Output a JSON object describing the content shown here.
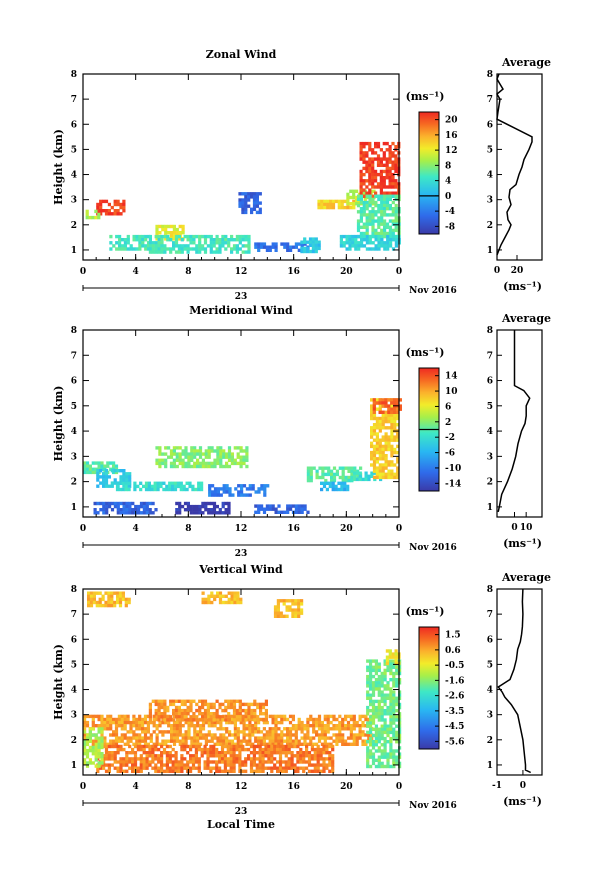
{
  "chart_data": [
    {
      "type": "heatmap",
      "title": "Zonal Wind",
      "ylabel": "Height (km)",
      "ylim": [
        0.6,
        8
      ],
      "yticks": [
        "1",
        "2",
        "3",
        "4",
        "5",
        "6",
        "7",
        "8"
      ],
      "xlim": [
        0,
        24
      ],
      "xticks": [
        "0",
        "4",
        "8",
        "12",
        "16",
        "20",
        "0"
      ],
      "date_label": "23",
      "month_label": "Nov 2016",
      "colorbar": {
        "unit": "(ms⁻¹)",
        "ticks": [
          "20",
          "16",
          "12",
          "8",
          "4",
          "0",
          "-4",
          "-8"
        ],
        "range": [
          -10,
          22
        ],
        "zero_line": 0
      },
      "blocks": [
        {
          "x": [
            1.0,
            3.0
          ],
          "y": [
            2.4,
            3.0
          ],
          "v": 21
        },
        {
          "x": [
            0.2,
            1.2
          ],
          "y": [
            2.3,
            2.6
          ],
          "v": 10
        },
        {
          "x": [
            2.0,
            5.0
          ],
          "y": [
            1.0,
            1.6
          ],
          "v": 5
        },
        {
          "x": [
            5.5,
            7.5
          ],
          "y": [
            1.5,
            2.0
          ],
          "v": 12
        },
        {
          "x": [
            5.0,
            12.5
          ],
          "y": [
            0.9,
            1.6
          ],
          "v": 5
        },
        {
          "x": [
            11.8,
            13.5
          ],
          "y": [
            2.5,
            3.3
          ],
          "v": -6
        },
        {
          "x": [
            13.0,
            17.0
          ],
          "y": [
            1.0,
            1.3
          ],
          "v": -5
        },
        {
          "x": [
            16.5,
            18.0
          ],
          "y": [
            1.0,
            1.5
          ],
          "v": 2
        },
        {
          "x": [
            17.8,
            20.5
          ],
          "y": [
            2.7,
            3.0
          ],
          "v": 14
        },
        {
          "x": [
            20.0,
            22.0
          ],
          "y": [
            2.8,
            3.4
          ],
          "v": 10
        },
        {
          "x": [
            21.0,
            24.0
          ],
          "y": [
            3.2,
            5.3
          ],
          "v": 21
        },
        {
          "x": [
            20.8,
            24.0
          ],
          "y": [
            1.5,
            3.2
          ],
          "v": 6
        },
        {
          "x": [
            19.5,
            24.0
          ],
          "y": [
            1.1,
            1.6
          ],
          "v": 3
        }
      ],
      "average_profile": {
        "title": "Average",
        "xlabel": "(ms⁻¹)",
        "xlim": [
          0,
          35
        ],
        "xticks": [
          "0",
          "20"
        ],
        "height": [
          0.8,
          1.0,
          1.2,
          1.5,
          1.8,
          2.0,
          2.2,
          2.5,
          2.8,
          3.1,
          3.4,
          3.6,
          4.0,
          4.3,
          4.6,
          5.0,
          5.3,
          5.5,
          6.2,
          6.5,
          7.0,
          7.2,
          7.4,
          7.6,
          7.8,
          8.0
        ],
        "value": [
          0,
          2,
          4,
          8,
          12,
          14,
          11,
          10,
          14,
          12,
          13,
          19,
          22,
          25,
          27,
          32,
          35,
          35,
          0,
          1,
          3,
          0,
          6,
          3,
          0,
          2
        ]
      }
    },
    {
      "type": "heatmap",
      "title": "Meridional Wind",
      "ylabel": "Height (km)",
      "ylim": [
        0.6,
        8
      ],
      "yticks": [
        "1",
        "2",
        "3",
        "4",
        "5",
        "6",
        "7",
        "8"
      ],
      "xlim": [
        0,
        24
      ],
      "xticks": [
        "0",
        "4",
        "8",
        "12",
        "16",
        "20",
        "0"
      ],
      "date_label": "23",
      "month_label": "Nov 2016",
      "colorbar": {
        "unit": "(ms⁻¹)",
        "ticks": [
          "14",
          "10",
          "6",
          "2",
          "-2",
          "-6",
          "-10",
          "-14"
        ],
        "range": [
          -16,
          16
        ],
        "zero_line": 0
      },
      "blocks": [
        {
          "x": [
            0.0,
            2.5
          ],
          "y": [
            2.4,
            2.8
          ],
          "v": 0
        },
        {
          "x": [
            1.0,
            3.5
          ],
          "y": [
            1.8,
            2.5
          ],
          "v": -4
        },
        {
          "x": [
            0.8,
            5.5
          ],
          "y": [
            0.8,
            1.2
          ],
          "v": -12
        },
        {
          "x": [
            5.5,
            12.5
          ],
          "y": [
            2.6,
            3.4
          ],
          "v": 2
        },
        {
          "x": [
            7.0,
            11.0
          ],
          "y": [
            0.8,
            1.2
          ],
          "v": -16
        },
        {
          "x": [
            9.5,
            14.0
          ],
          "y": [
            1.5,
            1.9
          ],
          "v": -10
        },
        {
          "x": [
            13.0,
            17.0
          ],
          "y": [
            0.8,
            1.1
          ],
          "v": -12
        },
        {
          "x": [
            17.0,
            21.0
          ],
          "y": [
            2.1,
            2.6
          ],
          "v": 0
        },
        {
          "x": [
            20.5,
            22.5
          ],
          "y": [
            2.1,
            2.4
          ],
          "v": -2
        },
        {
          "x": [
            21.8,
            24.0
          ],
          "y": [
            2.2,
            5.3
          ],
          "v": 8
        },
        {
          "x": [
            22.0,
            24.0
          ],
          "y": [
            4.8,
            5.3
          ],
          "v": 13
        },
        {
          "x": [
            2.5,
            9.0
          ],
          "y": [
            1.7,
            2.0
          ],
          "v": -2
        },
        {
          "x": [
            18.0,
            20.0
          ],
          "y": [
            1.7,
            2.0
          ],
          "v": -6
        }
      ],
      "average_profile": {
        "title": "Average",
        "xlabel": "(ms⁻¹)",
        "xlim": [
          -15,
          15
        ],
        "xticks": [
          "0",
          "10"
        ],
        "height": [
          0.8,
          1.0,
          1.5,
          2.0,
          2.5,
          3.0,
          3.5,
          4.0,
          4.3,
          4.6,
          5.0,
          5.3,
          5.6,
          5.8,
          6.5,
          7.0,
          7.5,
          8.0
        ],
        "value": [
          -14,
          -13,
          -11,
          -6,
          -2,
          1,
          3,
          6,
          9,
          10,
          10,
          13,
          8,
          0,
          0,
          0,
          0,
          0
        ]
      }
    },
    {
      "type": "heatmap",
      "title": "Vertical Wind",
      "ylabel": "Height (km)",
      "xlabel": "Local Time",
      "ylim": [
        0.6,
        8
      ],
      "yticks": [
        "1",
        "2",
        "3",
        "4",
        "5",
        "6",
        "7",
        "8"
      ],
      "xlim": [
        0,
        24
      ],
      "xticks": [
        "0",
        "4",
        "8",
        "12",
        "16",
        "20",
        "0"
      ],
      "date_label": "23",
      "month_label": "Nov 2016",
      "colorbar": {
        "unit": "(ms⁻¹)",
        "ticks": [
          "1.5",
          "0.6",
          "-0.5",
          "-1.6",
          "-2.6",
          "-3.5",
          "-4.5",
          "-5.6"
        ],
        "range": [
          -6.2,
          2.0
        ]
      },
      "blocks": [
        {
          "x": [
            0.3,
            3.5
          ],
          "y": [
            7.3,
            7.9
          ],
          "v": 0.2
        },
        {
          "x": [
            9.0,
            12.0
          ],
          "y": [
            7.5,
            7.9
          ],
          "v": 0.2
        },
        {
          "x": [
            14.5,
            16.5
          ],
          "y": [
            6.9,
            7.6
          ],
          "v": 0.2
        },
        {
          "x": [
            0.0,
            22.0
          ],
          "y": [
            1.8,
            3.0
          ],
          "v": 0.6
        },
        {
          "x": [
            5.0,
            14.0
          ],
          "y": [
            2.8,
            3.6
          ],
          "v": 0.7
        },
        {
          "x": [
            1.0,
            19.0
          ],
          "y": [
            0.8,
            1.8
          ],
          "v": 1.0
        },
        {
          "x": [
            0.0,
            1.5
          ],
          "y": [
            1.0,
            2.5
          ],
          "v": -1.2
        },
        {
          "x": [
            21.5,
            24.0
          ],
          "y": [
            1.0,
            5.2
          ],
          "v": -1.8
        },
        {
          "x": [
            23.0,
            24.0
          ],
          "y": [
            5.0,
            5.6
          ],
          "v": -0.5
        }
      ],
      "average_profile": {
        "title": "Average",
        "xlabel": "(ms⁻¹)",
        "xlim": [
          -1,
          0.35
        ],
        "xticks": [
          "-1",
          "0"
        ],
        "height": [
          0.7,
          0.8,
          1.0,
          1.5,
          2.0,
          2.5,
          3.0,
          3.4,
          3.7,
          3.9,
          4.1,
          4.2,
          4.4,
          4.8,
          5.2,
          5.6,
          5.9,
          6.2,
          6.5,
          7.0,
          7.5,
          8.0
        ],
        "value": [
          0.3,
          0.1,
          0.1,
          0.05,
          0.0,
          -0.1,
          -0.2,
          -0.45,
          -0.7,
          -0.8,
          -0.95,
          -0.8,
          -0.5,
          -0.35,
          -0.25,
          -0.2,
          -0.1,
          -0.05,
          -0.02,
          0.0,
          -0.02,
          0.0
        ]
      }
    }
  ]
}
